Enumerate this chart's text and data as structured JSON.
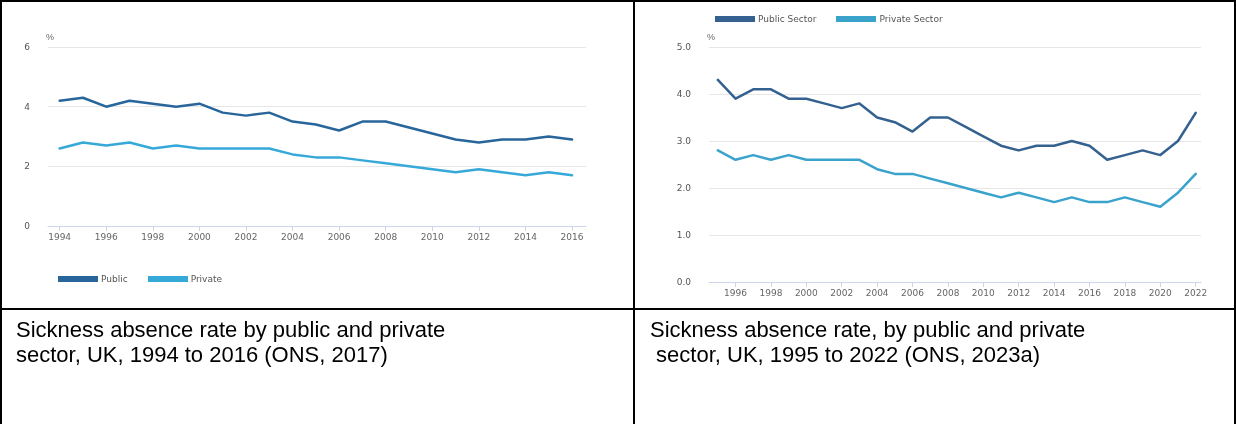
{
  "chart_data": [
    {
      "type": "line",
      "title": "Sickness absence rate by public and private sector, UK, 1994 to 2016 (ONS, 2017)",
      "ylabel": "%",
      "x": [
        1994,
        1995,
        1996,
        1997,
        1998,
        1999,
        2000,
        2001,
        2002,
        2003,
        2004,
        2005,
        2006,
        2007,
        2008,
        2009,
        2010,
        2011,
        2012,
        2013,
        2014,
        2015,
        2016
      ],
      "series": [
        {
          "name": "Public",
          "color": "#28659a",
          "values": [
            4.2,
            4.3,
            4.0,
            4.2,
            4.1,
            4.0,
            4.1,
            3.8,
            3.7,
            3.8,
            3.5,
            3.4,
            3.2,
            3.5,
            3.5,
            3.3,
            3.1,
            2.9,
            2.8,
            2.9,
            2.9,
            3.0,
            2.9
          ]
        },
        {
          "name": "Private",
          "color": "#36a9d9",
          "values": [
            2.6,
            2.8,
            2.7,
            2.8,
            2.6,
            2.7,
            2.6,
            2.6,
            2.6,
            2.6,
            2.4,
            2.3,
            2.3,
            2.2,
            2.1,
            2.0,
            1.9,
            1.8,
            1.9,
            1.8,
            1.7,
            1.8,
            1.7
          ]
        }
      ],
      "xlim": [
        1993.5,
        2016.6
      ],
      "xticks": [
        1994,
        1996,
        1998,
        2000,
        2002,
        2004,
        2006,
        2008,
        2010,
        2012,
        2014,
        2016
      ],
      "ylim": [
        0,
        6
      ],
      "yticks": [
        0,
        2,
        4,
        6
      ],
      "grid": "y",
      "legend": "bottom left",
      "marker": "none",
      "line_style": "solid"
    },
    {
      "type": "line",
      "title": "Sickness absence rate, by public and private sector, UK, 1995 to 2022 (ONS, 2023a)",
      "ylabel": "%",
      "x": [
        1995,
        1996,
        1997,
        1998,
        1999,
        2000,
        2001,
        2002,
        2003,
        2004,
        2005,
        2006,
        2007,
        2008,
        2009,
        2010,
        2011,
        2012,
        2013,
        2014,
        2015,
        2016,
        2017,
        2018,
        2019,
        2020,
        2021,
        2022
      ],
      "series": [
        {
          "name": "Public Sector",
          "color": "#34618f",
          "values": [
            4.3,
            3.9,
            4.1,
            4.1,
            3.9,
            3.9,
            3.8,
            3.7,
            3.8,
            3.5,
            3.4,
            3.2,
            3.5,
            3.5,
            3.3,
            3.1,
            2.9,
            2.8,
            2.9,
            2.9,
            3.0,
            2.9,
            2.6,
            2.7,
            2.8,
            2.7,
            3.0,
            3.6
          ]
        },
        {
          "name": "Private Sector",
          "color": "#3aa3cc",
          "values": [
            2.8,
            2.6,
            2.7,
            2.6,
            2.7,
            2.6,
            2.6,
            2.6,
            2.6,
            2.4,
            2.3,
            2.3,
            2.2,
            2.1,
            2.0,
            1.9,
            1.8,
            1.9,
            1.8,
            1.7,
            1.8,
            1.7,
            1.7,
            1.8,
            1.7,
            1.6,
            1.9,
            2.3
          ]
        }
      ],
      "xlim": [
        1994.5,
        2022.3
      ],
      "xticks": [
        1996,
        1998,
        2000,
        2002,
        2004,
        2006,
        2008,
        2010,
        2012,
        2014,
        2016,
        2018,
        2020,
        2022
      ],
      "ylim": [
        0,
        5
      ],
      "yticks": [
        {
          "value": 0,
          "label": "0.0"
        },
        {
          "value": 1,
          "label": "1.0"
        },
        {
          "value": 2,
          "label": "2.0"
        },
        {
          "value": 3,
          "label": "3.0"
        },
        {
          "value": 4,
          "label": "4.0"
        },
        {
          "value": 5,
          "label": "5.0"
        }
      ],
      "grid": "y",
      "legend": "top left",
      "marker": "none",
      "line_style": "solid"
    }
  ]
}
